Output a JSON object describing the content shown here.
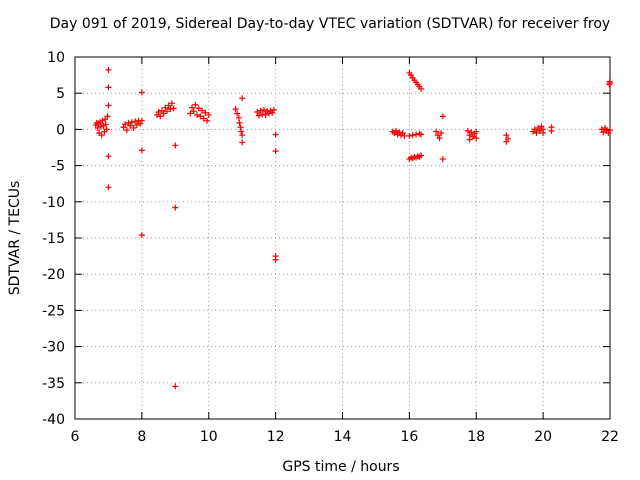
{
  "chart_data": {
    "type": "scatter",
    "title": "Day 091 of 2019, Sidereal Day-to-day VTEC variation (SDTVAR) for receiver froy",
    "xlabel": "GPS time / hours",
    "ylabel": "SDTVAR / TECUs",
    "xlim": [
      6,
      22
    ],
    "ylim": [
      -40,
      10
    ],
    "xticks": [
      6,
      8,
      10,
      12,
      14,
      16,
      18,
      20,
      22
    ],
    "yticks": [
      -40,
      -35,
      -30,
      -25,
      -20,
      -15,
      -10,
      -5,
      0,
      5,
      10
    ],
    "grid": true,
    "marker": "plus",
    "color": "#ff0000",
    "series": [
      {
        "name": "SDTVAR",
        "points": [
          [
            6.62,
            0.6
          ],
          [
            6.65,
            0.9
          ],
          [
            6.68,
            0.2
          ],
          [
            6.7,
            0.8
          ],
          [
            6.72,
            -0.5
          ],
          [
            6.75,
            1.0
          ],
          [
            6.78,
            0.4
          ],
          [
            6.8,
            -0.8
          ],
          [
            6.82,
            1.2
          ],
          [
            6.85,
            0.5
          ],
          [
            6.88,
            -0.3
          ],
          [
            6.9,
            1.4
          ],
          [
            6.92,
            0.7
          ],
          [
            6.95,
            0.0
          ],
          [
            6.97,
            1.8
          ],
          [
            7.0,
            8.2
          ],
          [
            7.0,
            5.8
          ],
          [
            7.0,
            3.3
          ],
          [
            7.0,
            -3.7
          ],
          [
            7.0,
            -8.0
          ],
          [
            7.45,
            0.3
          ],
          [
            7.5,
            0.7
          ],
          [
            7.55,
            -0.1
          ],
          [
            7.6,
            0.9
          ],
          [
            7.65,
            0.5
          ],
          [
            7.7,
            1.0
          ],
          [
            7.75,
            0.2
          ],
          [
            7.8,
            1.1
          ],
          [
            7.85,
            0.6
          ],
          [
            7.9,
            1.2
          ],
          [
            7.95,
            0.8
          ],
          [
            8.0,
            5.1
          ],
          [
            8.0,
            1.2
          ],
          [
            8.0,
            -2.9
          ],
          [
            8.0,
            -14.6
          ],
          [
            8.45,
            2.0
          ],
          [
            8.5,
            2.4
          ],
          [
            8.55,
            1.8
          ],
          [
            8.6,
            2.6
          ],
          [
            8.65,
            2.2
          ],
          [
            8.7,
            3.0
          ],
          [
            8.75,
            2.5
          ],
          [
            8.8,
            3.3
          ],
          [
            8.85,
            2.8
          ],
          [
            8.9,
            3.6
          ],
          [
            8.95,
            2.9
          ],
          [
            9.0,
            -2.2
          ],
          [
            9.0,
            -10.8
          ],
          [
            9.0,
            -35.5
          ],
          [
            9.45,
            2.2
          ],
          [
            9.5,
            3.0
          ],
          [
            9.55,
            2.5
          ],
          [
            9.6,
            3.4
          ],
          [
            9.65,
            2.0
          ],
          [
            9.7,
            2.9
          ],
          [
            9.75,
            1.8
          ],
          [
            9.8,
            2.6
          ],
          [
            9.85,
            1.5
          ],
          [
            9.9,
            2.3
          ],
          [
            9.95,
            1.2
          ],
          [
            10.0,
            2.0
          ],
          [
            10.8,
            2.8
          ],
          [
            10.85,
            2.2
          ],
          [
            10.9,
            1.6
          ],
          [
            10.92,
            0.9
          ],
          [
            10.95,
            0.3
          ],
          [
            10.97,
            -0.3
          ],
          [
            11.0,
            4.3
          ],
          [
            11.0,
            -0.8
          ],
          [
            11.0,
            -1.8
          ],
          [
            11.45,
            2.4
          ],
          [
            11.5,
            1.9
          ],
          [
            11.55,
            2.6
          ],
          [
            11.6,
            2.1
          ],
          [
            11.65,
            2.7
          ],
          [
            11.7,
            2.0
          ],
          [
            11.75,
            2.5
          ],
          [
            11.8,
            2.2
          ],
          [
            11.85,
            2.6
          ],
          [
            11.9,
            2.3
          ],
          [
            11.95,
            2.7
          ],
          [
            12.0,
            -0.7
          ],
          [
            12.0,
            -3.0
          ],
          [
            12.0,
            -17.5
          ],
          [
            12.0,
            -18.0
          ],
          [
            15.5,
            -0.3
          ],
          [
            15.55,
            -0.5
          ],
          [
            15.6,
            -0.2
          ],
          [
            15.65,
            -0.7
          ],
          [
            15.7,
            -0.4
          ],
          [
            15.75,
            -0.8
          ],
          [
            15.8,
            -0.5
          ],
          [
            15.85,
            -0.9
          ],
          [
            16.0,
            7.8
          ],
          [
            16.05,
            7.5
          ],
          [
            16.1,
            7.1
          ],
          [
            16.15,
            6.8
          ],
          [
            16.2,
            6.5
          ],
          [
            16.25,
            6.2
          ],
          [
            16.3,
            5.9
          ],
          [
            16.35,
            5.6
          ],
          [
            16.0,
            -4.1
          ],
          [
            16.05,
            -3.9
          ],
          [
            16.1,
            -4.0
          ],
          [
            16.15,
            -3.8
          ],
          [
            16.2,
            -3.9
          ],
          [
            16.25,
            -3.7
          ],
          [
            16.3,
            -3.8
          ],
          [
            16.35,
            -3.6
          ],
          [
            16.0,
            -0.9
          ],
          [
            16.1,
            -0.8
          ],
          [
            16.2,
            -0.7
          ],
          [
            16.3,
            -0.6
          ],
          [
            16.35,
            -0.7
          ],
          [
            16.8,
            -0.3
          ],
          [
            16.85,
            -0.8
          ],
          [
            16.9,
            -1.2
          ],
          [
            16.95,
            -0.5
          ],
          [
            17.0,
            1.8
          ],
          [
            17.0,
            -4.1
          ],
          [
            17.75,
            -0.2
          ],
          [
            17.8,
            -0.8
          ],
          [
            17.8,
            -1.4
          ],
          [
            17.85,
            -0.4
          ],
          [
            17.9,
            -1.0
          ],
          [
            17.95,
            -0.6
          ],
          [
            18.0,
            -1.2
          ],
          [
            18.0,
            -0.3
          ],
          [
            18.9,
            -0.8
          ],
          [
            18.9,
            -1.7
          ],
          [
            18.95,
            -1.3
          ],
          [
            19.7,
            -0.3
          ],
          [
            19.75,
            0.0
          ],
          [
            19.8,
            -0.5
          ],
          [
            19.85,
            0.2
          ],
          [
            19.9,
            -0.2
          ],
          [
            19.95,
            0.4
          ],
          [
            20.0,
            0.0
          ],
          [
            20.0,
            -0.5
          ],
          [
            20.25,
            0.3
          ],
          [
            20.25,
            -0.2
          ],
          [
            21.75,
            0.0
          ],
          [
            21.8,
            -0.4
          ],
          [
            21.85,
            0.2
          ],
          [
            21.9,
            -0.2
          ],
          [
            21.95,
            -0.5
          ],
          [
            22.0,
            -0.1
          ],
          [
            21.98,
            6.2
          ],
          [
            21.99,
            6.6
          ],
          [
            22.0,
            6.4
          ]
        ]
      }
    ]
  }
}
